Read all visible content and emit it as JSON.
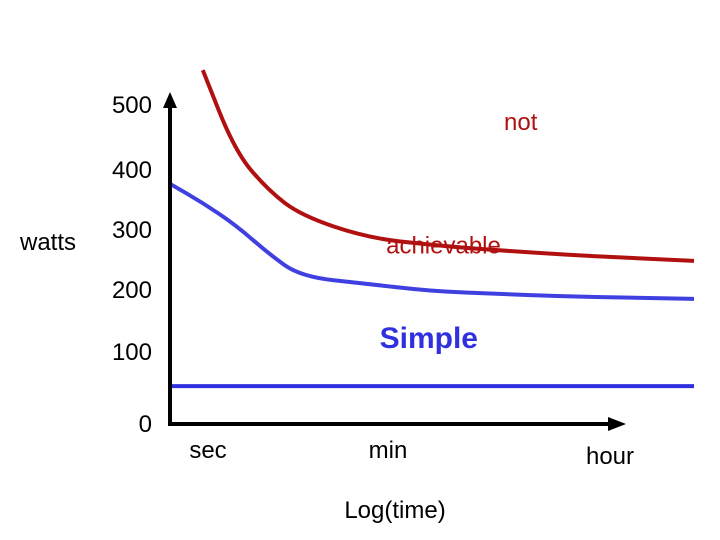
{
  "chart_data": {
    "type": "line",
    "ylabel": "watts",
    "xlabel": "Log(time)",
    "y_ticks": [
      0,
      100,
      200,
      300,
      400,
      500
    ],
    "x_ticks": [
      "sec",
      "min",
      "hour"
    ],
    "ylim": [
      0,
      550
    ],
    "grid": false,
    "series": [
      {
        "name": "not",
        "color": "#b01010",
        "points": [
          [
            0.25,
            560
          ],
          [
            0.5,
            430
          ],
          [
            0.75,
            370
          ],
          [
            1.0,
            330
          ],
          [
            1.5,
            295
          ],
          [
            2.0,
            283
          ],
          [
            2.5,
            275
          ],
          [
            3.0,
            268
          ],
          [
            3.5,
            263
          ],
          [
            4.0,
            258
          ]
        ]
      },
      {
        "name": "achievable",
        "color": "#4040e0",
        "points": [
          [
            0.0,
            380
          ],
          [
            0.25,
            350
          ],
          [
            0.5,
            315
          ],
          [
            0.75,
            270
          ],
          [
            1.0,
            233
          ],
          [
            1.5,
            222
          ],
          [
            2.0,
            210
          ],
          [
            2.5,
            206
          ],
          [
            3.0,
            202
          ],
          [
            3.5,
            200
          ],
          [
            4.0,
            198
          ]
        ]
      },
      {
        "name": "Simple",
        "color": "#3030e0",
        "points": [
          [
            0.0,
            60
          ],
          [
            4.0,
            60
          ]
        ]
      }
    ],
    "annotations": [
      {
        "text": "not",
        "color": "#b01010",
        "x": 2.55,
        "y": 465,
        "weight": "normal"
      },
      {
        "text": "achievable",
        "color": "#b01010",
        "x": 1.65,
        "y": 270,
        "weight": "normal"
      },
      {
        "text": "Simple",
        "color": "#3030e0",
        "x": 1.6,
        "y": 120,
        "weight": "bold"
      }
    ]
  }
}
